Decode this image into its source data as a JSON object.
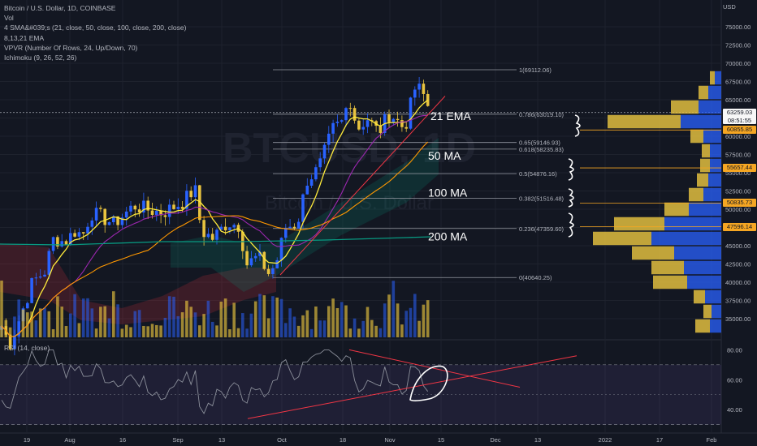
{
  "header": {
    "title": "Bitcoin / U.S. Dollar, 1D, COINBASE",
    "indicators": [
      "Vol",
      "4 SMA&#039;s (21, close, 50, close, 100, close, 200, close)",
      "8,13,21 EMA",
      "VPVR (Number Of Rows, 24, Up/Down, 70)",
      "Ichimoku (9, 26, 52, 26)"
    ],
    "rsi_label": "RSI (14, close)",
    "currency": "USD",
    "watermark": "BTCUSD, 1D",
    "watermark_sub": "Bitcoin / U.S. Dollar"
  },
  "price_tags": [
    {
      "price": 63259.03,
      "label": "63259.03",
      "sub": "08:51:55",
      "bg": "#f7f7f7",
      "fg": "#131722"
    },
    {
      "price": 60855.85,
      "label": "60855.85",
      "bg": "#f5a623",
      "fg": "#131722"
    },
    {
      "price": 55657.44,
      "label": "55657.44",
      "bg": "#f5a623",
      "fg": "#131722"
    },
    {
      "price": 50835.73,
      "label": "50835.73",
      "bg": "#f5a623",
      "fg": "#131722"
    },
    {
      "price": 47596.14,
      "label": "47596.14",
      "bg": "#f5a623",
      "fg": "#131722"
    }
  ],
  "chart_data": {
    "type": "candlestick",
    "ylim": [
      33000,
      78000
    ],
    "y_ticks": [
      35000,
      37500,
      40000,
      42500,
      45000,
      47500,
      50000,
      52500,
      55000,
      57500,
      60000,
      62500,
      65000,
      67500,
      70000,
      72500,
      75000
    ],
    "y_tick_labels": [
      "35000.00",
      "37500.00",
      "40000.00",
      "42500.00",
      "45000.00",
      "47500.00",
      "50000.00",
      "52500.00",
      "55000.00",
      "57500.00",
      "60000.00",
      "62500.00",
      "65000.00",
      "67500.00",
      "70000.00",
      "72500.00",
      "75000.00"
    ],
    "x_labels": [
      "19",
      "Aug",
      "16",
      "Sep",
      "13",
      "Oct",
      "18",
      "Nov",
      "15",
      "Dec",
      "13",
      "2022",
      "17",
      "Feb"
    ],
    "colors": {
      "up": "#2962ff",
      "down": "#e8c33f",
      "ema21": "#ffeb3b",
      "ma50": "#9c27b0",
      "ma100": "#ff9800",
      "ma200": "#089981",
      "rsi": "#8b8f9a",
      "trend": "#f23645"
    },
    "fibonacci": [
      {
        "ratio": "1",
        "price": 69112.06,
        "label": "1(69112.06)"
      },
      {
        "ratio": "0.786",
        "price": 63019.1,
        "label": "0.786(63019.10)"
      },
      {
        "ratio": "0.65",
        "price": 59146.93,
        "label": "0.65(59146.93)"
      },
      {
        "ratio": "0.618",
        "price": 58235.83,
        "label": "0.618(58235.83)"
      },
      {
        "ratio": "0.5",
        "price": 54876.16,
        "label": "0.5(54876.16)"
      },
      {
        "ratio": "0.382",
        "price": 51516.48,
        "label": "0.382(51516.48)"
      },
      {
        "ratio": "0.236",
        "price": 47359.6,
        "label": "0.236(47359.60)"
      },
      {
        "ratio": "0",
        "price": 40640.25,
        "label": "0(40640.25)"
      }
    ],
    "ma_annotations": [
      {
        "text": "21 EMA",
        "price": 62200
      },
      {
        "text": "50 MA",
        "price": 56800
      },
      {
        "text": "100 MA",
        "price": 51700
      },
      {
        "text": "200 MA",
        "price": 45700
      }
    ],
    "vpvr": [
      {
        "price": 34000,
        "up": 14,
        "down": 18
      },
      {
        "price": 36000,
        "up": 12,
        "down": 10
      },
      {
        "price": 38000,
        "up": 20,
        "down": 14
      },
      {
        "price": 40000,
        "up": 42,
        "down": 42
      },
      {
        "price": 42000,
        "up": 46,
        "down": 40
      },
      {
        "price": 44000,
        "up": 58,
        "down": 52
      },
      {
        "price": 46000,
        "up": 86,
        "down": 72
      },
      {
        "price": 48000,
        "up": 70,
        "down": 62
      },
      {
        "price": 50000,
        "up": 40,
        "down": 30
      },
      {
        "price": 52000,
        "up": 22,
        "down": 18
      },
      {
        "price": 54000,
        "up": 16,
        "down": 14
      },
      {
        "price": 56000,
        "up": 14,
        "down": 12
      },
      {
        "price": 58000,
        "up": 14,
        "down": 10
      },
      {
        "price": 60000,
        "up": 22,
        "down": 16
      },
      {
        "price": 62000,
        "up": 50,
        "down": 90
      },
      {
        "price": 64000,
        "up": 28,
        "down": 34
      },
      {
        "price": 66000,
        "up": 16,
        "down": 12
      },
      {
        "price": 68000,
        "up": 8,
        "down": 6
      }
    ],
    "rsi_ylim": [
      26,
      84
    ],
    "rsi_ticks": [
      40,
      60,
      80
    ],
    "rsi_tick_labels": [
      "40.00",
      "60.00",
      "80.00"
    ],
    "rsi_bands": [
      30,
      70
    ]
  }
}
